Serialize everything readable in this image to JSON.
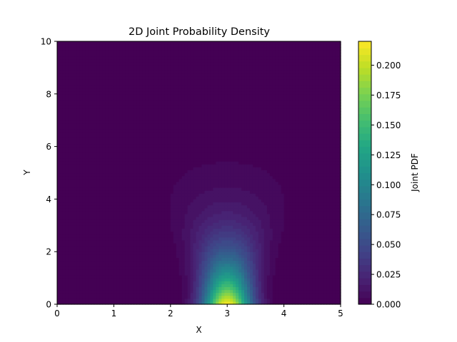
{
  "chart_data": {
    "type": "heatmap",
    "title": "2D Joint Probability Density",
    "xlabel": "X",
    "ylabel": "Y",
    "xlim": [
      0,
      5
    ],
    "ylim": [
      0,
      10
    ],
    "x_ticks": [
      "0",
      "1",
      "2",
      "3",
      "4",
      "5"
    ],
    "y_ticks": [
      "0",
      "2",
      "4",
      "6",
      "8",
      "10"
    ],
    "colorbar": {
      "label": "Joint PDF",
      "colormap": "viridis",
      "range": [
        0,
        0.22
      ],
      "ticks": [
        "0.000",
        "0.025",
        "0.050",
        "0.075",
        "0.100",
        "0.125",
        "0.150",
        "0.175",
        "0.200"
      ]
    },
    "density_model": {
      "description": "Peak at x=3, y=0 (~0.22), decaying with y; width in x grows with y",
      "peak_x": 3.0,
      "peak_y": 0,
      "peak_value": 0.22,
      "contour_levels": 40
    }
  }
}
